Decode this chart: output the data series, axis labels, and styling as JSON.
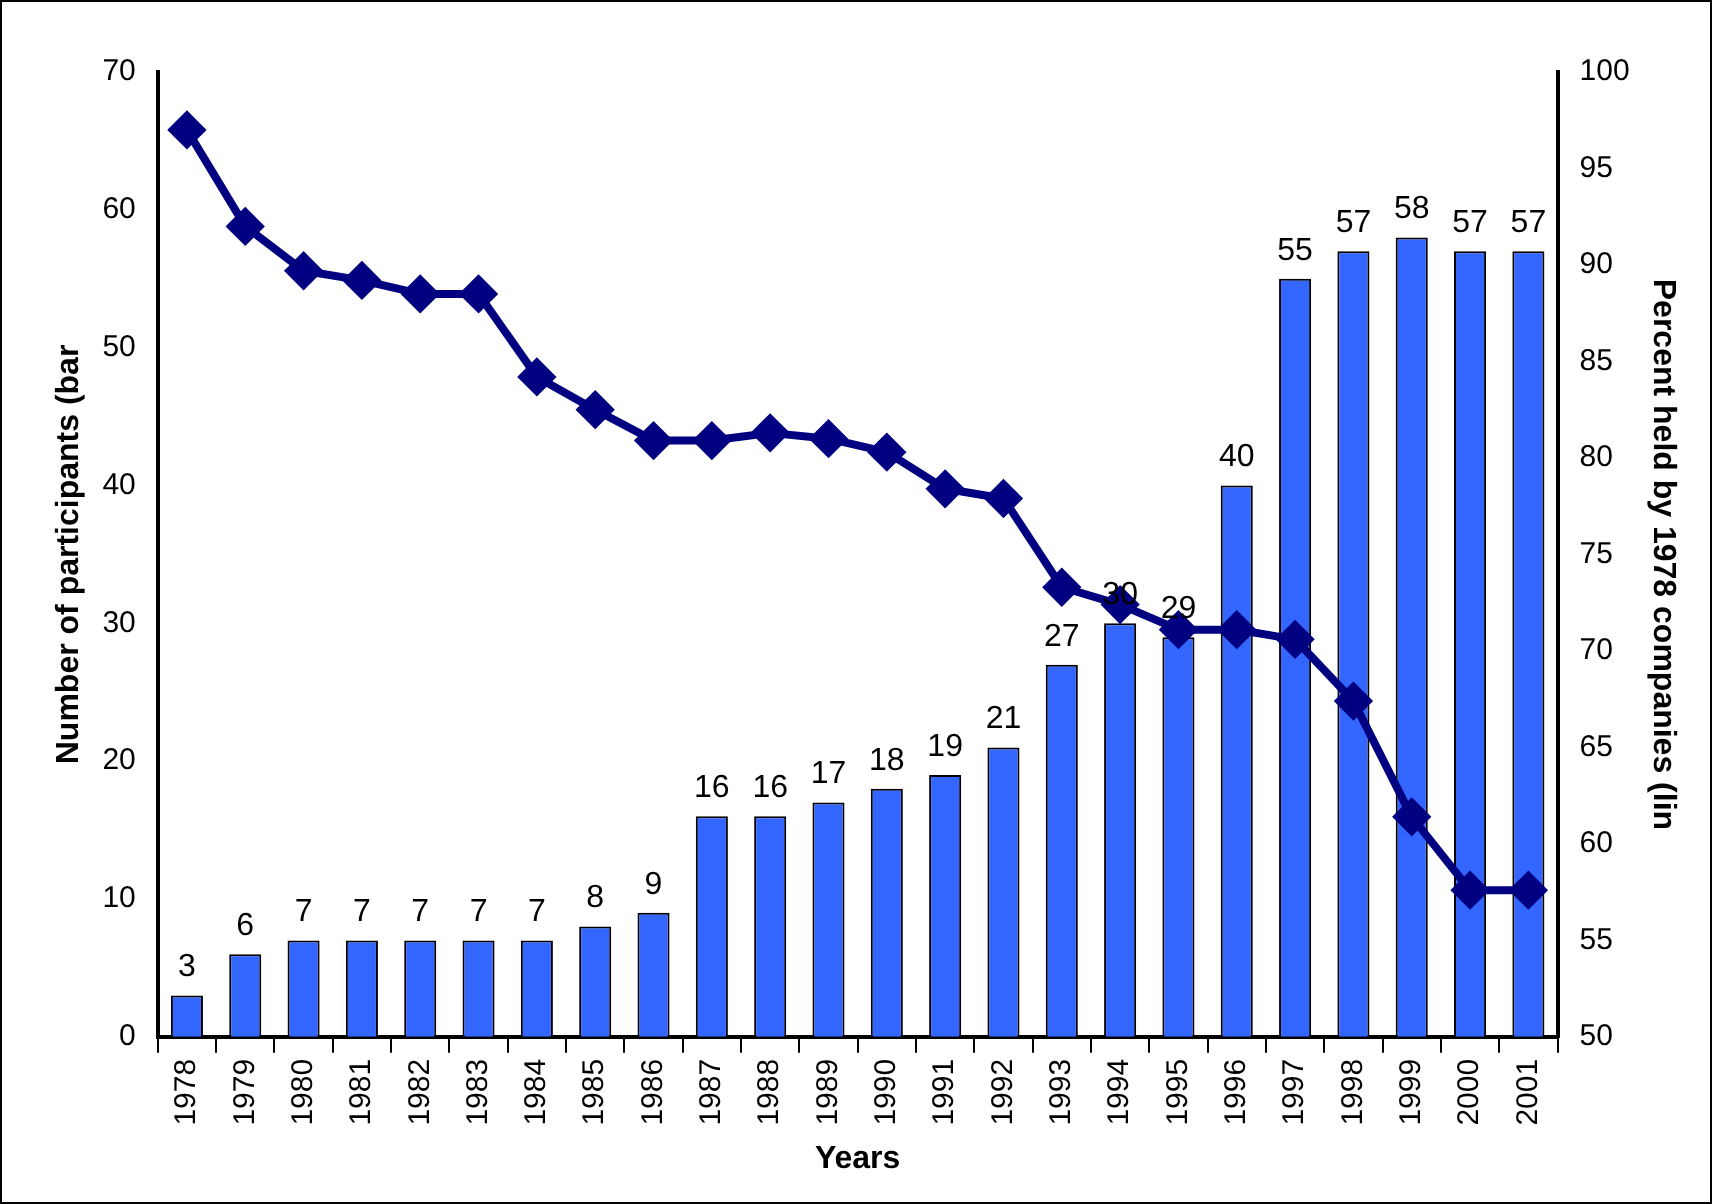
{
  "chart_data": {
    "type": "bar",
    "xlabel": "Years",
    "ylabel": "Number of participants (bar",
    "y2label": "Percent held by 1978 companies (lin",
    "categories": [
      "1978",
      "1979",
      "1980",
      "1981",
      "1982",
      "1983",
      "1984",
      "1985",
      "1986",
      "1987",
      "1988",
      "1989",
      "1990",
      "1991",
      "1992",
      "1993",
      "1994",
      "1995",
      "1996",
      "1997",
      "1998",
      "1999",
      "2000",
      "2001"
    ],
    "series": [
      {
        "color": "#3366ff",
        "values": [
          3,
          6,
          7,
          7,
          7,
          7,
          7,
          8,
          9,
          16,
          16,
          17,
          18,
          19,
          21,
          27,
          30,
          29,
          40,
          55,
          57,
          58,
          57,
          57
        ],
        "data_labels": true
      },
      {
        "type": "line",
        "axis": "y2",
        "color": "#000080",
        "marker": "diamond",
        "values": [
          97.0,
          92.0,
          89.7,
          89.2,
          88.5,
          88.5,
          84.2,
          82.5,
          80.9,
          80.9,
          81.3,
          81.0,
          80.3,
          78.4,
          77.9,
          73.3,
          72.4,
          71.1,
          71.1,
          70.6,
          67.4,
          61.4,
          57.6,
          57.6
        ]
      }
    ],
    "ylim": [
      0,
      70
    ],
    "yticks": [
      0,
      10,
      20,
      30,
      40,
      50,
      60,
      70
    ],
    "y2lim": [
      50,
      100
    ],
    "y2ticks": [
      50,
      55,
      60,
      65,
      70,
      75,
      80,
      85,
      90,
      95,
      100
    ],
    "grid": false,
    "legend": false
  }
}
